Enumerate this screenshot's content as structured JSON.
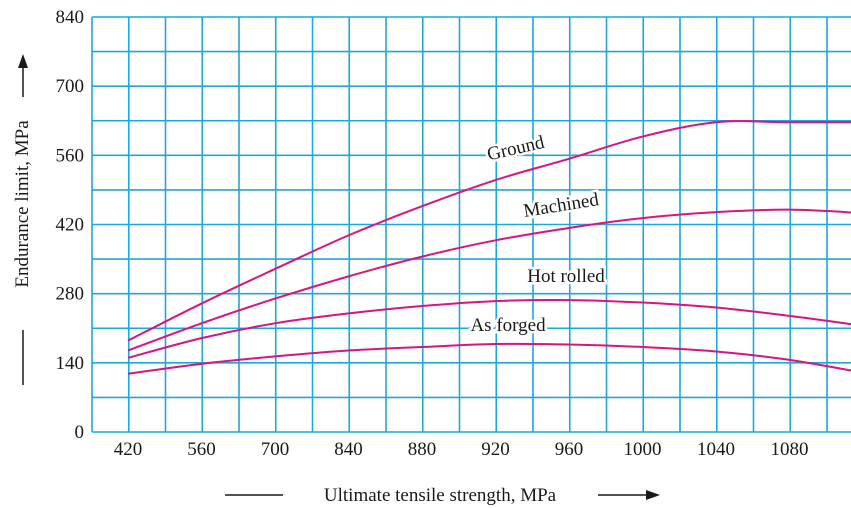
{
  "chart_data": {
    "type": "line",
    "xlabel": "Ultimate tensile strength, MPa",
    "ylabel": "Endurance limit, MPa",
    "x_ticks": [
      "420",
      "560",
      "700",
      "840",
      "880",
      "920",
      "960",
      "1000",
      "1040",
      "1080"
    ],
    "y_ticks": [
      "0",
      "140",
      "280",
      "420",
      "560",
      "700",
      "840"
    ],
    "ylim": [
      0,
      840
    ],
    "grid": true,
    "colors": {
      "grid": "#1ea7d9",
      "curve": "#d6157f",
      "text": "#1a1a1a"
    },
    "series": [
      {
        "name": "Ground",
        "x": [
          420,
          560,
          700,
          840,
          880,
          920,
          960,
          1000,
          1040,
          1080,
          1120
        ],
        "y": [
          185,
          260,
          330,
          398,
          457,
          510,
          553,
          598,
          627,
          627,
          627
        ]
      },
      {
        "name": "Machined",
        "x": [
          420,
          560,
          700,
          840,
          880,
          920,
          960,
          1000,
          1040,
          1080,
          1120
        ],
        "y": [
          165,
          220,
          270,
          315,
          355,
          388,
          413,
          433,
          445,
          450,
          443
        ]
      },
      {
        "name": "Hot rolled",
        "x": [
          420,
          560,
          700,
          840,
          880,
          920,
          960,
          1000,
          1040,
          1080,
          1120
        ],
        "y": [
          150,
          190,
          220,
          240,
          255,
          265,
          267,
          262,
          252,
          235,
          215
        ]
      },
      {
        "name": "As forged",
        "x": [
          420,
          560,
          700,
          840,
          880,
          920,
          960,
          1000,
          1040,
          1080,
          1120
        ],
        "y": [
          118,
          138,
          153,
          165,
          172,
          178,
          177,
          172,
          163,
          146,
          120
        ]
      }
    ]
  }
}
